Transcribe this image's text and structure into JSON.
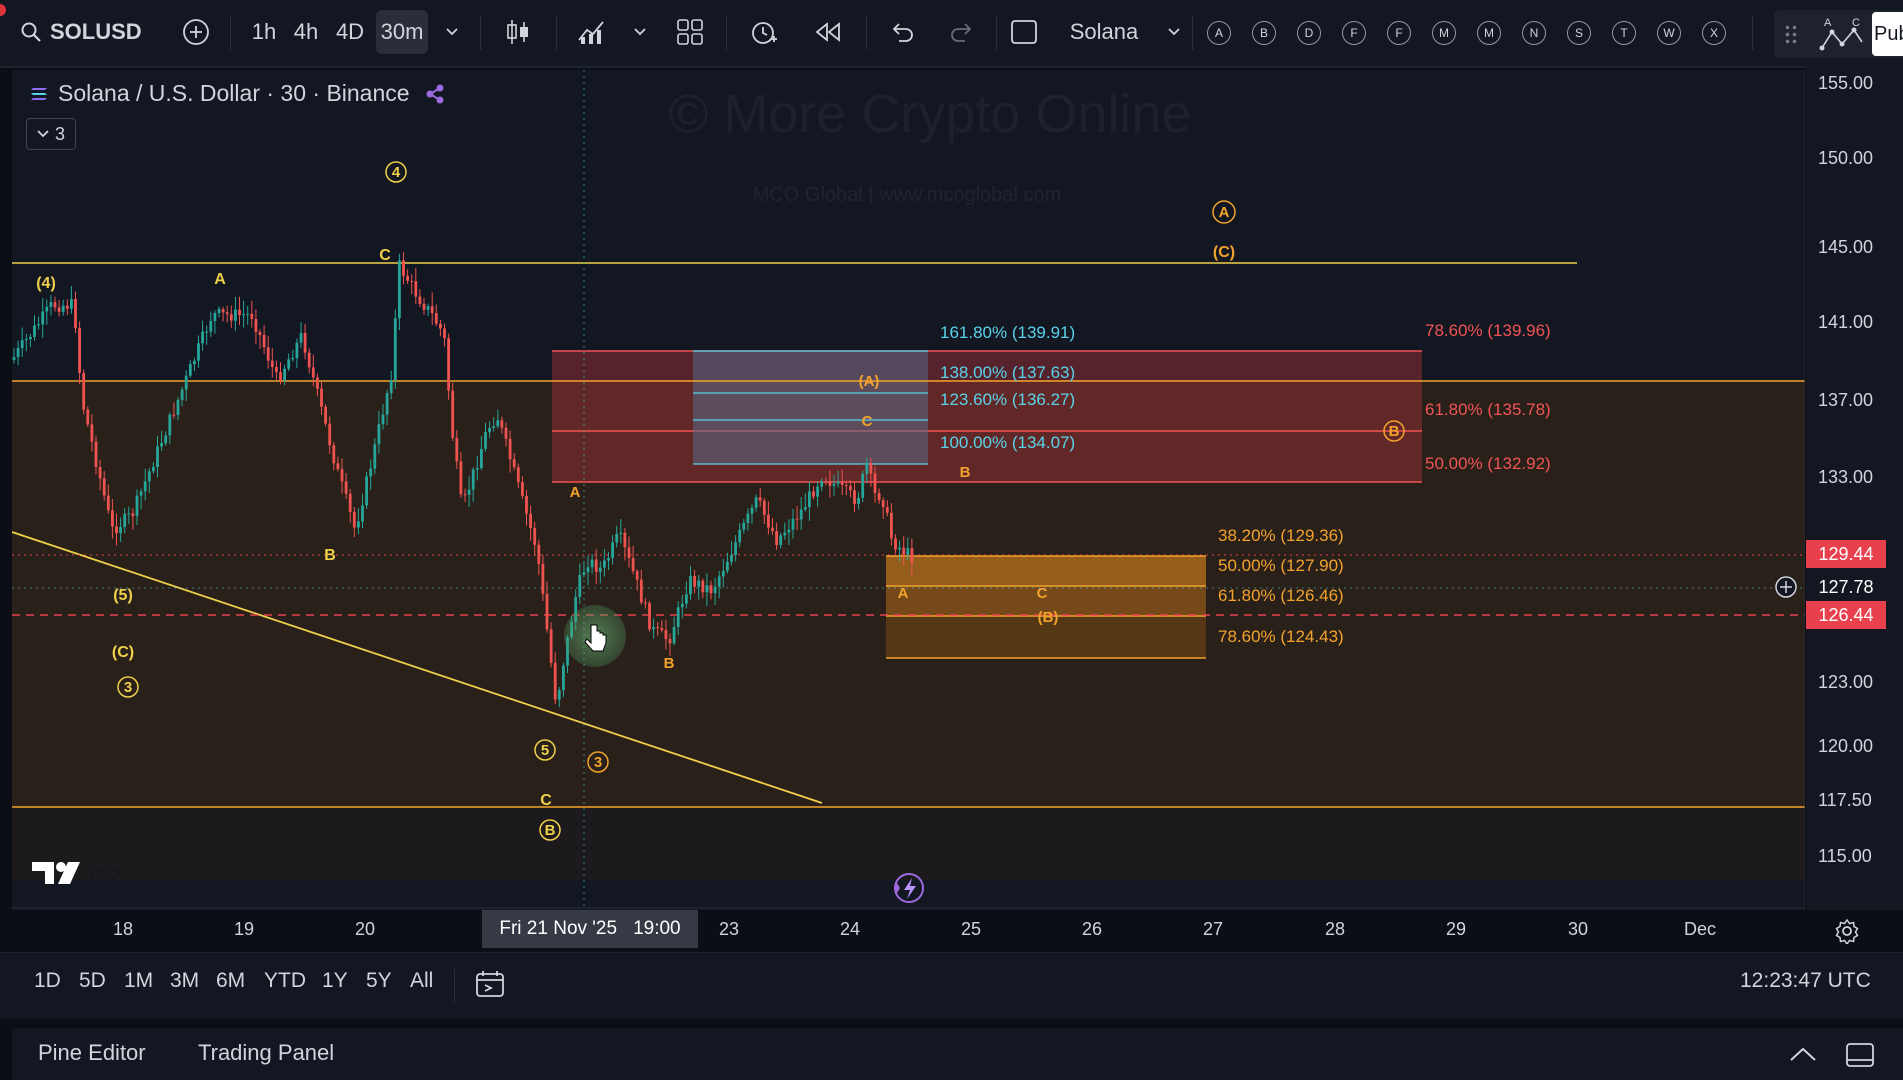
{
  "toolbar": {
    "symbol": "SOLUSD",
    "intervals": [
      "1h",
      "4h",
      "4D",
      "30m"
    ],
    "active_interval": "30m",
    "layout_name": "Solana",
    "alphabet_buttons": [
      "A",
      "B",
      "D",
      "F",
      "F",
      "M",
      "M",
      "N",
      "S",
      "T",
      "W",
      "X"
    ],
    "publish_label": "Pub"
  },
  "legend": {
    "title": "Solana / U.S. Dollar · 30 · Binance",
    "collapse_count": "3"
  },
  "watermark": {
    "line1": "© More Crypto Online",
    "line2": "MCO Global  |  www.mcoglobal.com"
  },
  "logo": {
    "badge": "PRO"
  },
  "colors": {
    "background": "#131722",
    "yellow_wave": "#f0d04a",
    "orange_wave": "#f3a32d",
    "red_zone": "#f05454",
    "cyan_fib": "#5ad3ea",
    "price_tag_red": "#e8414d",
    "candle_up": "#26a69a",
    "candle_down": "#ef5350"
  },
  "price_axis": {
    "ticks": [
      "155.00",
      "150.00",
      "145.00",
      "141.00",
      "137.00",
      "133.00",
      "123.00",
      "120.00",
      "117.50",
      "115.00"
    ],
    "tags": [
      {
        "label": "129.44",
        "style": "red"
      },
      {
        "label": "127.78",
        "style": "crosshair"
      },
      {
        "label": "126.44",
        "style": "red"
      }
    ]
  },
  "time_axis": {
    "ticks": [
      "18",
      "19",
      "20",
      "23",
      "24",
      "25",
      "26",
      "27",
      "28",
      "29",
      "30",
      "Dec"
    ],
    "crosshair_label": "Fri 21 Nov '25",
    "crosshair_time": "19:00"
  },
  "fib_labels": {
    "cyan": [
      "161.80% (139.91)",
      "138.00% (137.63)",
      "123.60% (136.27)",
      "100.00% (134.07)"
    ],
    "red": [
      "78.60% (139.96)",
      "61.80% (135.78)",
      "50.00% (132.92)"
    ],
    "orange": [
      "38.20% (129.36)",
      "50.00% (127.90)",
      "61.80% (126.46)",
      "78.60% (124.43)"
    ]
  },
  "wave_labels": {
    "w4_paren": "(4)",
    "A": "A",
    "C": "C",
    "B": "B",
    "w5_paren": "(5)",
    "C_paren": "(C)",
    "circ3": "3",
    "circ4": "4",
    "circ5": "5",
    "circB": "B",
    "circA": "A",
    "A_paren": "(A)",
    "B_paren": "(B)"
  },
  "range_buttons": [
    "1D",
    "5D",
    "1M",
    "3M",
    "6M",
    "YTD",
    "1Y",
    "5Y",
    "All"
  ],
  "clock": "12:23:47 UTC",
  "footer": {
    "pine_editor": "Pine Editor",
    "trading_panel": "Trading Panel"
  }
}
